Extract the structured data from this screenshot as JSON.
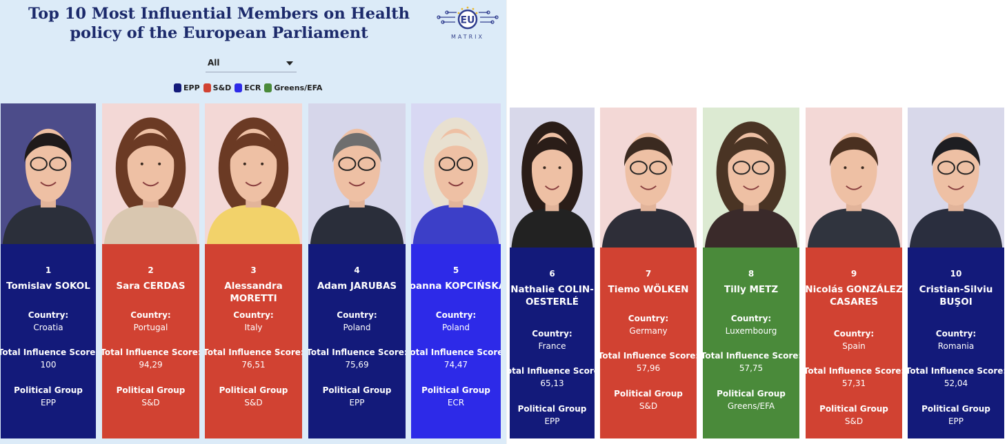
{
  "title": "Top 10 Most Influential Members on Health policy of the European Parliament",
  "logo": {
    "badge": "EU",
    "word": "MATRIX"
  },
  "filter": {
    "selected": "All"
  },
  "legend": [
    {
      "label": "EPP",
      "color": "#131a7a"
    },
    {
      "label": "S&D",
      "color": "#d14232"
    },
    {
      "label": "ECR",
      "color": "#2d2ae8"
    },
    {
      "label": "Greens/EFA",
      "color": "#4a8a3a"
    }
  ],
  "field_labels": {
    "country": "Country:",
    "score": "Total Influence Score:",
    "group": "Political Group"
  },
  "members": [
    {
      "rank": "1",
      "name": "Tomislav SOKOL",
      "country": "Croatia",
      "score": "100",
      "group": "EPP",
      "color": "#131a7a",
      "photo_bg": "#4c4c8a"
    },
    {
      "rank": "2",
      "name": "Sara CERDAS",
      "country": "Portugal",
      "score": "94,29",
      "group": "S&D",
      "color": "#d14232",
      "photo_bg": "#f3d8d6"
    },
    {
      "rank": "3",
      "name": "Alessandra MORETTI",
      "country": "Italy",
      "score": "76,51",
      "group": "S&D",
      "color": "#d14232",
      "photo_bg": "#f3d8d6"
    },
    {
      "rank": "4",
      "name": "Adam JARUBAS",
      "country": "Poland",
      "score": "75,69",
      "group": "EPP",
      "color": "#131a7a",
      "photo_bg": "#d6d6ea"
    },
    {
      "rank": "5",
      "name": "Joanna KOPCIŃSKA",
      "country": "Poland",
      "score": "74,47",
      "group": "ECR",
      "color": "#2d2ae8",
      "photo_bg": "#d8d8f3"
    },
    {
      "rank": "6",
      "name": "Nathalie COLIN-OESTERLÉ",
      "country": "France",
      "score": "65,13",
      "group": "EPP",
      "color": "#131a7a",
      "photo_bg": "#d8d8ea"
    },
    {
      "rank": "7",
      "name": "Tiemo WÖLKEN",
      "country": "Germany",
      "score": "57,96",
      "group": "S&D",
      "color": "#d14232",
      "photo_bg": "#f3d8d6"
    },
    {
      "rank": "8",
      "name": "Tilly METZ",
      "country": "Luxembourg",
      "score": "57,75",
      "group": "Greens/EFA",
      "color": "#4a8a3a",
      "photo_bg": "#dcead2"
    },
    {
      "rank": "9",
      "name": "Nicolás GONZÁLEZ CASARES",
      "country": "Spain",
      "score": "57,31",
      "group": "S&D",
      "color": "#d14232",
      "photo_bg": "#f3d8d6"
    },
    {
      "rank": "10",
      "name": "Cristian-Silviu BUŞOI",
      "country": "Romania",
      "score": "52,04",
      "group": "EPP",
      "color": "#131a7a",
      "photo_bg": "#d8d8ea"
    }
  ]
}
